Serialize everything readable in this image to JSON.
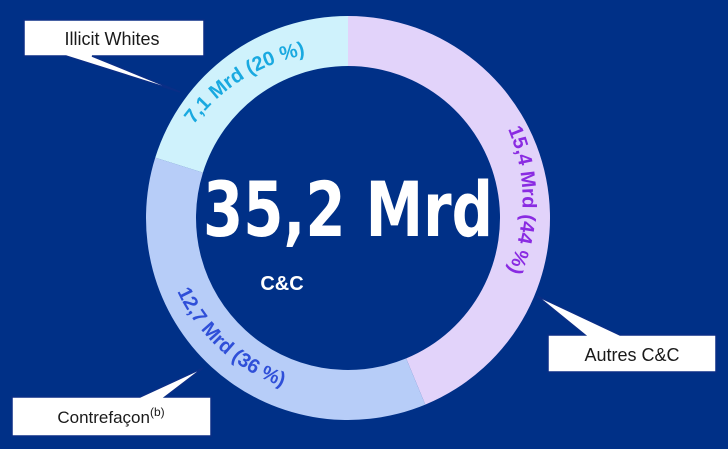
{
  "chart_data": {
    "type": "pie",
    "variant": "donut",
    "center_value": "35,2 Mrd",
    "center_unit": "C&C",
    "slices": [
      {
        "label": "Autres C&C",
        "value": 15.4,
        "percent": 44,
        "value_label": "15,4 Mrd (44 %)",
        "color": "#E2D3FA",
        "label_color": "#8A2BE2"
      },
      {
        "label": "Contrefaçon",
        "label_sup": "(b)",
        "value": 12.7,
        "percent": 36,
        "value_label": "12,7 Mrd (36 %)",
        "color": "#B7CDF8",
        "label_color": "#2F4FD8"
      },
      {
        "label": "Illicit Whites",
        "value": 7.1,
        "percent": 20,
        "value_label": "7,1 Mrd (20 %)",
        "color": "#CFF2FC",
        "label_color": "#19A9E0"
      }
    ]
  },
  "colors": {
    "background": "#003087",
    "callout_border": "#0A2E86"
  }
}
